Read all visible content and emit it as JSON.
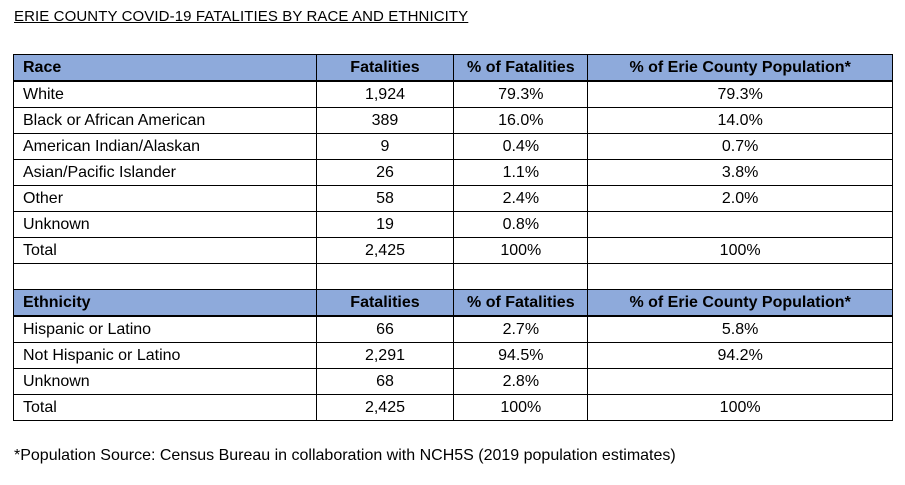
{
  "title": "ERIE COUNTY COVID-19 FATALITIES BY RACE AND ETHNICITY",
  "race_table": {
    "headers": [
      "Race",
      "Fatalities",
      "% of Fatalities",
      "% of Erie County Population*"
    ],
    "rows": [
      [
        "White",
        "1,924",
        "79.3%",
        "79.3%"
      ],
      [
        "Black or African American",
        "389",
        "16.0%",
        "14.0%"
      ],
      [
        "American Indian/Alaskan",
        "9",
        "0.4%",
        "0.7%"
      ],
      [
        "Asian/Pacific Islander",
        "26",
        "1.1%",
        "3.8%"
      ],
      [
        "Other",
        "58",
        "2.4%",
        "2.0%"
      ],
      [
        "Unknown",
        "19",
        "0.8%",
        ""
      ],
      [
        "Total",
        "2,425",
        "100%",
        "100%"
      ]
    ]
  },
  "ethnicity_table": {
    "headers": [
      "Ethnicity",
      "Fatalities",
      "% of Fatalities",
      "% of Erie County Population*"
    ],
    "rows": [
      [
        "Hispanic or Latino",
        "66",
        "2.7%",
        "5.8%"
      ],
      [
        "Not Hispanic or Latino",
        "2,291",
        "94.5%",
        "94.2%"
      ],
      [
        "Unknown",
        "68",
        "2.8%",
        ""
      ],
      [
        "Total",
        "2,425",
        "100%",
        "100%"
      ]
    ]
  },
  "footnote": "*Population Source: Census Bureau in collaboration with NCH5S (2019 population estimates)",
  "colors": {
    "header_background": "#8eaadb",
    "border": "#000000"
  }
}
